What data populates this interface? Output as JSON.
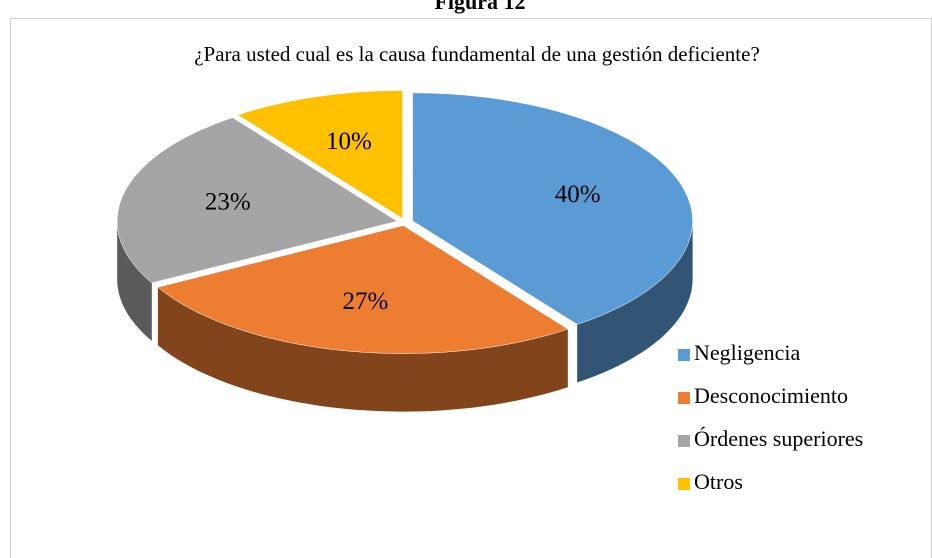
{
  "heading": "Figura 12",
  "chart_data": {
    "type": "pie",
    "title": "¿Para usted cual es la causa fundamental de una gestión deficiente?",
    "categories": [
      "Negligencia",
      "Desconocimiento",
      "Órdenes superiores",
      "Otros"
    ],
    "values": [
      40,
      27,
      23,
      10
    ],
    "value_labels": [
      "40%",
      "27%",
      "23%",
      "10%"
    ],
    "colors": [
      "#5b9bd5",
      "#ed7d31",
      "#a5a5a5",
      "#ffc000"
    ],
    "legend": "right"
  }
}
